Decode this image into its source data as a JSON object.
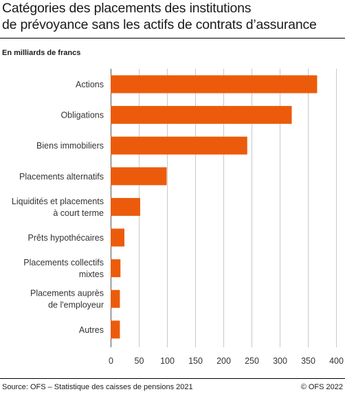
{
  "header": {
    "title_line1": "Catégories des placements des institutions",
    "title_line2": "de prévoyance sans les actifs de contrats d’assurance",
    "unit": "En milliards de francs"
  },
  "footer": {
    "source": "Source: OFS – Statistique des caisses de pensions 2021",
    "copyright": "© OFS 2022"
  },
  "chart_data": {
    "type": "bar",
    "orientation": "horizontal",
    "categories": [
      [
        "Actions"
      ],
      [
        "Obligations"
      ],
      [
        "Biens immobiliers"
      ],
      [
        "Placements alternatifs"
      ],
      [
        "Liquidités et placements",
        "à court terme"
      ],
      [
        "Prêts hypothécaires"
      ],
      [
        "Placements collectifs",
        "mixtes"
      ],
      [
        "Placements auprès",
        "de l'employeur"
      ],
      [
        "Autres"
      ]
    ],
    "values": [
      367,
      322,
      243,
      100,
      53,
      25,
      18,
      17,
      17
    ],
    "xlim": [
      0,
      400
    ],
    "xticks": [
      0,
      50,
      100,
      150,
      200,
      250,
      300,
      350,
      400
    ],
    "grid": true,
    "colors": {
      "bar": "#ec5b0b",
      "grid": "#c8c8c8",
      "axis": "#555555"
    }
  }
}
